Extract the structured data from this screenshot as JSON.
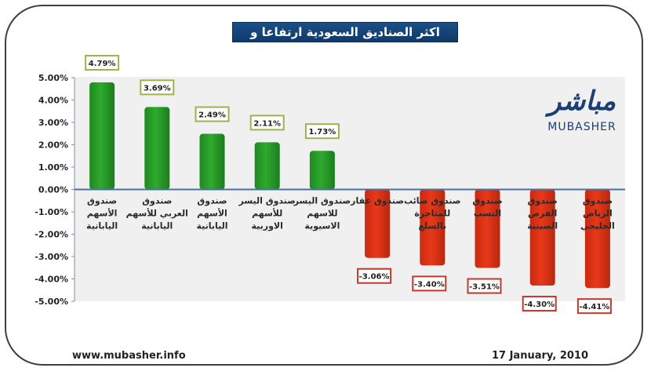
{
  "title": "اكثر الصناديق السعودية ارتفاعا و تراجعا",
  "logo": {
    "arabic": "مباشر",
    "english": "MUBASHER",
    "tm": "TM"
  },
  "footer": {
    "url": "www.mubasher.info",
    "date": "17 January, 2010"
  },
  "colors": {
    "positive": "#2eaa2e",
    "negative": "#e8381a",
    "title_bg": "#174a80",
    "pos_label_border": "#9bb54a",
    "neg_label_border": "#c0392b"
  },
  "chart_data": {
    "type": "bar",
    "ylim": [
      -5,
      5
    ],
    "yticks": [
      "5.00%",
      "4.00%",
      "3.00%",
      "2.00%",
      "1.00%",
      "0.00%",
      "-1.00%",
      "-2.00%",
      "-3.00%",
      "-4.00%",
      "-5.00%"
    ],
    "ytick_values": [
      5,
      4,
      3,
      2,
      1,
      0,
      -1,
      -2,
      -3,
      -4,
      -5
    ],
    "categories": [
      [
        "صندوق",
        "الأسهم",
        "اليابانية"
      ],
      [
        "صندوق",
        "العربي للأسهم",
        "اليابانية"
      ],
      [
        "صندوق",
        "الأسهم",
        "اليابانية"
      ],
      [
        "صندوق اليسر",
        "للأسهم",
        "الاوربية"
      ],
      [
        "صندوق اليسر",
        "للاسهم",
        "الاسيوية"
      ],
      [
        "صندوق عقار"
      ],
      [
        "صندوق صائب",
        "للمتاجرة",
        "بالسلع"
      ],
      [
        "صندوق",
        "النسب"
      ],
      [
        "صندوق",
        "الفرص",
        "الصينية"
      ],
      [
        "صندوق",
        "الرياض",
        "الخليجي"
      ]
    ],
    "values": [
      4.79,
      3.69,
      2.49,
      2.11,
      1.73,
      -3.06,
      -3.4,
      -3.51,
      -4.3,
      -4.41
    ],
    "data_labels": [
      "4.79%",
      "3.69%",
      "2.49%",
      "2.11%",
      "1.73%",
      "-3.06%",
      "-3.40%",
      "-3.51%",
      "-4.30%",
      "-4.41%"
    ],
    "grid": false,
    "legend": "none"
  }
}
